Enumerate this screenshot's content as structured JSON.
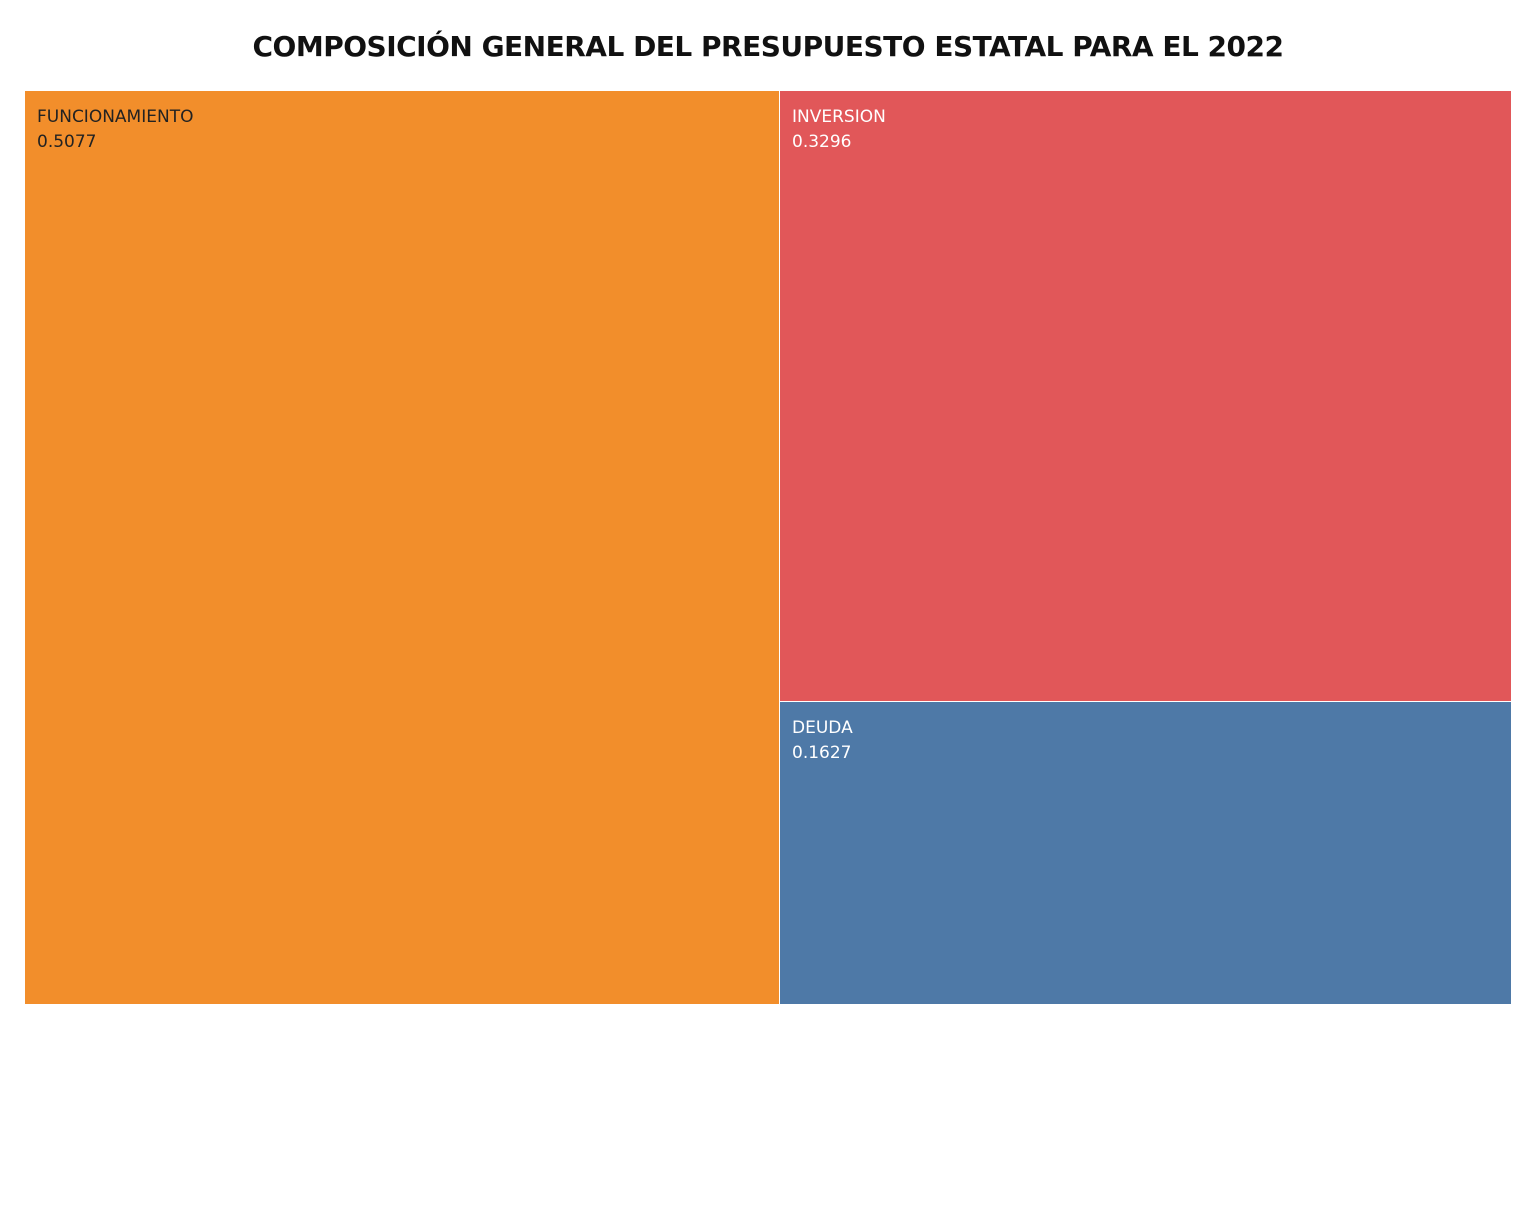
{
  "chart_data": {
    "type": "treemap",
    "title": "COMPOSICIÓN GENERAL DEL PRESUPUESTO ESTATAL PARA EL 2022",
    "items": [
      {
        "label": "FUNCIONAMIENTO",
        "value": 0.5077,
        "value_label": "0.5077",
        "color": "#F28E2B",
        "text_color": "#222222"
      },
      {
        "label": "INVERSION",
        "value": 0.3296,
        "value_label": "0.3296",
        "color": "#E15759",
        "text_color": "#FFFFFF"
      },
      {
        "label": "DEUDA",
        "value": 0.1627,
        "value_label": "0.1627",
        "color": "#4E79A7",
        "text_color": "#FFFFFF"
      }
    ]
  }
}
